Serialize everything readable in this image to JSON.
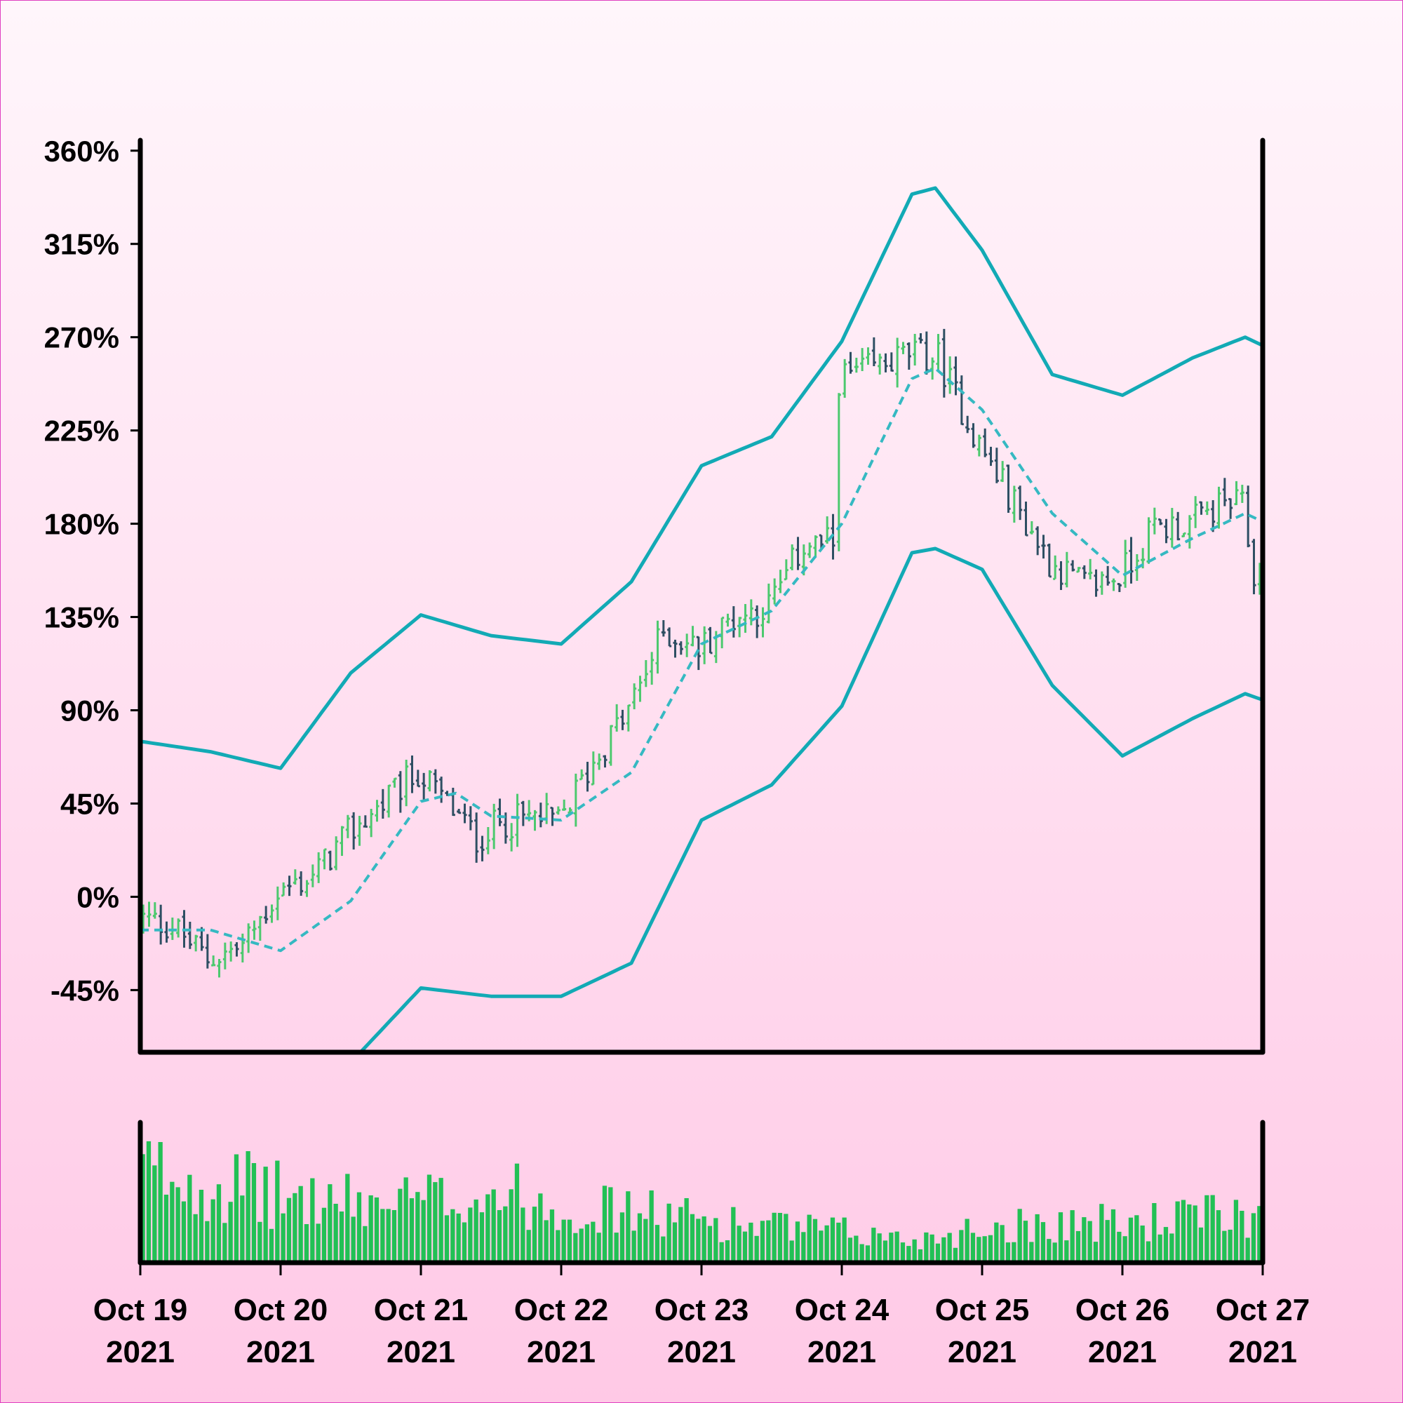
{
  "colors": {
    "up": "#4cc96e",
    "down": "#2e4f63",
    "band": "#12aab5",
    "middle": "#35b9c2",
    "volume": "#22c055",
    "axis": "#000000"
  },
  "chart_data": {
    "type": "ohlc",
    "title": "",
    "xlabel": "",
    "ylabel": "",
    "x_range": [
      "2021-10-19",
      "2021-10-27"
    ],
    "ylim": [
      -0.75,
      3.65
    ],
    "y_ticks": [
      {
        "value": 3.6,
        "label": "360%"
      },
      {
        "value": 3.15,
        "label": "315%"
      },
      {
        "value": 2.7,
        "label": "270%"
      },
      {
        "value": 2.25,
        "label": "225%"
      },
      {
        "value": 1.8,
        "label": "180%"
      },
      {
        "value": 1.35,
        "label": "135%"
      },
      {
        "value": 0.9,
        "label": "90%"
      },
      {
        "value": 0.45,
        "label": "45%"
      },
      {
        "value": 0,
        "label": "0%"
      },
      {
        "value": -0.45,
        "label": "-45%"
      }
    ],
    "x_ticks": [
      {
        "date": "2021-10-19",
        "line1": "Oct 19",
        "line2": "2021"
      },
      {
        "date": "2021-10-20",
        "line1": "Oct 20",
        "line2": "2021"
      },
      {
        "date": "2021-10-21",
        "line1": "Oct 21",
        "line2": "2021"
      },
      {
        "date": "2021-10-22",
        "line1": "Oct 22",
        "line2": "2021"
      },
      {
        "date": "2021-10-23",
        "line1": "Oct 23",
        "line2": "2021"
      },
      {
        "date": "2021-10-24",
        "line1": "Oct 24",
        "line2": "2021"
      },
      {
        "date": "2021-10-25",
        "line1": "Oct 25",
        "line2": "2021"
      },
      {
        "date": "2021-10-26",
        "line1": "Oct 26",
        "line2": "2021"
      },
      {
        "date": "2021-10-27",
        "line1": "Oct 27",
        "line2": "2021"
      }
    ],
    "interval_hours": 1,
    "start": "2021-10-19T00:00",
    "close_anchors": [
      [
        "2021-10-19T00:00",
        -0.1
      ],
      [
        "2021-10-19T06:00",
        -0.14
      ],
      [
        "2021-10-19T12:00",
        -0.3
      ],
      [
        "2021-10-19T18:00",
        -0.24
      ],
      [
        "2021-10-20T00:00",
        0.02
      ],
      [
        "2021-10-20T06:00",
        0.1
      ],
      [
        "2021-10-20T12:00",
        0.3
      ],
      [
        "2021-10-20T18:00",
        0.45
      ],
      [
        "2021-10-21T00:00",
        0.6
      ],
      [
        "2021-10-21T06:00",
        0.42
      ],
      [
        "2021-10-21T10:00",
        0.28
      ],
      [
        "2021-10-21T14:00",
        0.36
      ],
      [
        "2021-10-21T20:00",
        0.38
      ],
      [
        "2021-10-22T00:00",
        0.36
      ],
      [
        "2021-10-22T06:00",
        0.65
      ],
      [
        "2021-10-22T12:00",
        0.9
      ],
      [
        "2021-10-22T18:00",
        1.28
      ],
      [
        "2021-10-23T00:00",
        1.2
      ],
      [
        "2021-10-23T06:00",
        1.35
      ],
      [
        "2021-10-23T12:00",
        1.4
      ],
      [
        "2021-10-23T18:00",
        1.7
      ],
      [
        "2021-10-23T23:00",
        1.7
      ],
      [
        "2021-10-24T00:00",
        2.5
      ],
      [
        "2021-10-24T06:00",
        2.55
      ],
      [
        "2021-10-24T12:00",
        2.62
      ],
      [
        "2021-10-24T17:00",
        2.6
      ],
      [
        "2021-10-25T00:00",
        2.18
      ],
      [
        "2021-10-25T06:00",
        1.9
      ],
      [
        "2021-10-25T12:00",
        1.62
      ],
      [
        "2021-10-25T18:00",
        1.5
      ],
      [
        "2021-10-26T00:00",
        1.55
      ],
      [
        "2021-10-26T06:00",
        1.78
      ],
      [
        "2021-10-26T12:00",
        1.8
      ],
      [
        "2021-10-26T18:00",
        1.9
      ],
      [
        "2021-10-26T21:00",
        1.88
      ],
      [
        "2021-10-26T23:00",
        1.55
      ]
    ],
    "middle_band": [
      [
        "2021-10-19T00:00",
        -0.16
      ],
      [
        "2021-10-19T12:00",
        -0.16
      ],
      [
        "2021-10-20T00:00",
        -0.26
      ],
      [
        "2021-10-20T12:00",
        -0.02
      ],
      [
        "2021-10-21T00:00",
        0.46
      ],
      [
        "2021-10-21T06:00",
        0.5
      ],
      [
        "2021-10-21T12:00",
        0.39
      ],
      [
        "2021-10-22T00:00",
        0.37
      ],
      [
        "2021-10-22T12:00",
        0.6
      ],
      [
        "2021-10-23T00:00",
        1.22
      ],
      [
        "2021-10-23T12:00",
        1.38
      ],
      [
        "2021-10-24T00:00",
        1.8
      ],
      [
        "2021-10-24T12:00",
        2.5
      ],
      [
        "2021-10-24T16:00",
        2.55
      ],
      [
        "2021-10-25T00:00",
        2.35
      ],
      [
        "2021-10-25T12:00",
        1.85
      ],
      [
        "2021-10-26T00:00",
        1.55
      ],
      [
        "2021-10-26T12:00",
        1.73
      ],
      [
        "2021-10-26T21:00",
        1.85
      ],
      [
        "2021-10-27T00:00",
        1.81
      ]
    ],
    "upper_band": [
      [
        "2021-10-19T00:00",
        0.75
      ],
      [
        "2021-10-19T12:00",
        0.7
      ],
      [
        "2021-10-20T00:00",
        0.62
      ],
      [
        "2021-10-20T12:00",
        1.08
      ],
      [
        "2021-10-21T00:00",
        1.36
      ],
      [
        "2021-10-21T12:00",
        1.26
      ],
      [
        "2021-10-22T00:00",
        1.22
      ],
      [
        "2021-10-22T12:00",
        1.52
      ],
      [
        "2021-10-23T00:00",
        2.08
      ],
      [
        "2021-10-23T12:00",
        2.22
      ],
      [
        "2021-10-24T00:00",
        2.68
      ],
      [
        "2021-10-24T12:00",
        3.39
      ],
      [
        "2021-10-24T16:00",
        3.42
      ],
      [
        "2021-10-25T00:00",
        3.12
      ],
      [
        "2021-10-25T12:00",
        2.52
      ],
      [
        "2021-10-26T00:00",
        2.42
      ],
      [
        "2021-10-26T12:00",
        2.6
      ],
      [
        "2021-10-26T21:00",
        2.7
      ],
      [
        "2021-10-27T00:00",
        2.66
      ]
    ],
    "lower_band": [
      [
        "2021-10-19T00:00",
        -1.07
      ],
      [
        "2021-10-19T12:00",
        -1.02
      ],
      [
        "2021-10-20T00:00",
        -1.14
      ],
      [
        "2021-10-20T12:00",
        -0.8
      ],
      [
        "2021-10-21T00:00",
        -0.44
      ],
      [
        "2021-10-21T12:00",
        -0.48
      ],
      [
        "2021-10-22T00:00",
        -0.48
      ],
      [
        "2021-10-22T12:00",
        -0.32
      ],
      [
        "2021-10-23T00:00",
        0.37
      ],
      [
        "2021-10-23T12:00",
        0.54
      ],
      [
        "2021-10-24T00:00",
        0.92
      ],
      [
        "2021-10-24T12:00",
        1.66
      ],
      [
        "2021-10-24T16:00",
        1.68
      ],
      [
        "2021-10-25T00:00",
        1.58
      ],
      [
        "2021-10-25T12:00",
        1.02
      ],
      [
        "2021-10-26T00:00",
        0.68
      ],
      [
        "2021-10-26T12:00",
        0.86
      ],
      [
        "2021-10-26T21:00",
        0.98
      ],
      [
        "2021-10-27T00:00",
        0.95
      ]
    ],
    "volume_profile": [
      [
        "2021-10-19T00:00",
        0.9
      ],
      [
        "2021-10-19T12:00",
        0.8
      ],
      [
        "2021-10-20T00:00",
        0.65
      ],
      [
        "2021-10-20T12:00",
        0.58
      ],
      [
        "2021-10-21T00:00",
        0.6
      ],
      [
        "2021-10-21T12:00",
        0.7
      ],
      [
        "2021-10-22T00:00",
        0.55
      ],
      [
        "2021-10-22T12:00",
        0.5
      ],
      [
        "2021-10-23T00:00",
        0.42
      ],
      [
        "2021-10-23T12:00",
        0.35
      ],
      [
        "2021-10-24T00:00",
        0.3
      ],
      [
        "2021-10-24T12:00",
        0.22
      ],
      [
        "2021-10-25T00:00",
        0.35
      ],
      [
        "2021-10-25T12:00",
        0.4
      ],
      [
        "2021-10-26T00:00",
        0.38
      ],
      [
        "2021-10-26T12:00",
        0.45
      ],
      [
        "2021-10-27T00:00",
        0.48
      ]
    ]
  }
}
